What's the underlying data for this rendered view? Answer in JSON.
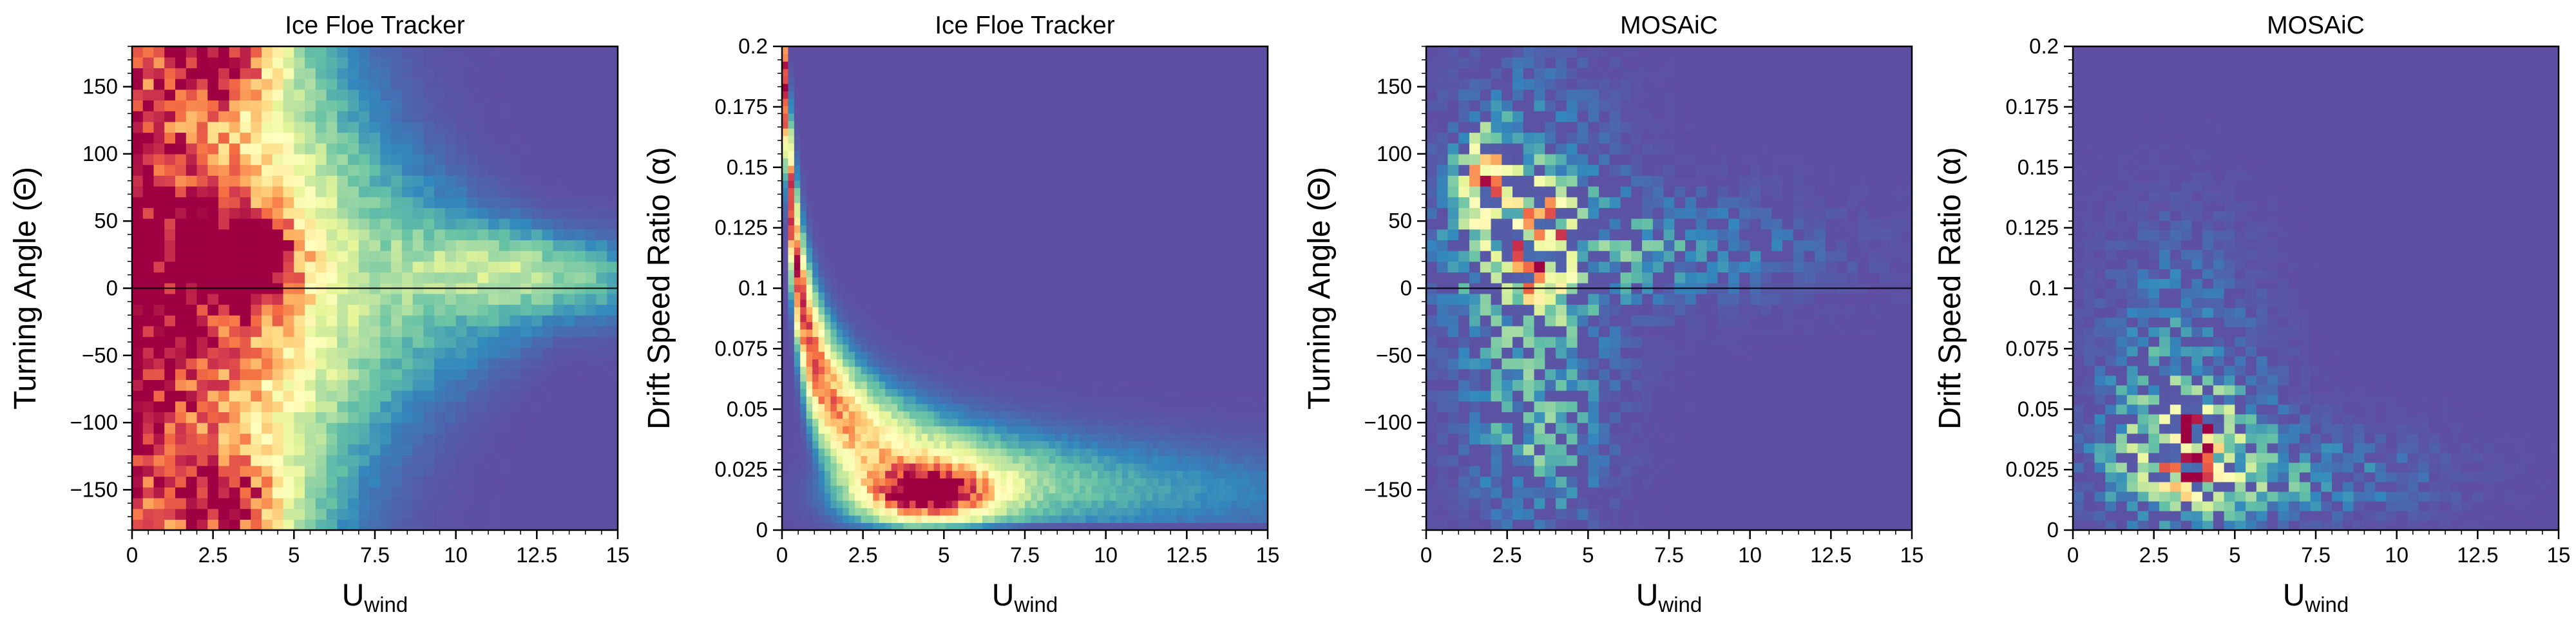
{
  "figure": {
    "colormap": "Spectral_r",
    "colormap_stops": [
      "#5e4fa2",
      "#3288bd",
      "#66c2a5",
      "#abdda4",
      "#e6f598",
      "#ffffbf",
      "#fee08b",
      "#fdae61",
      "#f46d43",
      "#d53e4f",
      "#9e0142"
    ]
  },
  "chart_data": [
    {
      "type": "heatmap",
      "title": "Ice Floe Tracker",
      "xlabel": "U",
      "xlabel_sub": "wind",
      "ylabel": "Turning Angle (Θ)",
      "xlim": [
        0,
        15
      ],
      "ylim": [
        -180,
        180
      ],
      "x_bins": 45,
      "y_bins": 45,
      "xticks": [
        0,
        2.5,
        5,
        7.5,
        10,
        12.5,
        15
      ],
      "xtick_labels": [
        "0",
        "2.5",
        "5",
        "7.5",
        "10",
        "12.5",
        "15"
      ],
      "yticks": [
        -150,
        -100,
        -50,
        0,
        50,
        100,
        150
      ],
      "ytick_labels": [
        "−150",
        "−100",
        "−50",
        "0",
        "50",
        "100",
        "150"
      ],
      "reference_line_y": 0,
      "density_model": "turning",
      "peaks": [
        {
          "x": 3.5,
          "y": 22,
          "intensity": 1.0
        },
        {
          "x": 2.8,
          "y": 170,
          "intensity": 0.9
        },
        {
          "x": 3.0,
          "y": -160,
          "intensity": 0.85
        }
      ]
    },
    {
      "type": "heatmap",
      "title": "Ice Floe Tracker",
      "xlabel": "U",
      "xlabel_sub": "wind",
      "ylabel": "Drift Speed Ratio (α)",
      "xlim": [
        0,
        15
      ],
      "ylim": [
        0,
        0.2
      ],
      "x_bins": 80,
      "y_bins": 65,
      "xticks": [
        0,
        2.5,
        5,
        7.5,
        10,
        12.5,
        15
      ],
      "xtick_labels": [
        "0",
        "2.5",
        "5",
        "7.5",
        "10",
        "12.5",
        "15"
      ],
      "yticks": [
        0,
        0.025,
        0.05,
        0.075,
        0.1,
        0.125,
        0.15,
        0.175,
        0.2
      ],
      "ytick_labels": [
        "0",
        "0.025",
        "0.05",
        "0.075",
        "0.1",
        "0.125",
        "0.15",
        "0.175",
        "0.2"
      ],
      "reference_line_y": null,
      "density_model": "ratio",
      "peaks": [
        {
          "x": 4.5,
          "y": 0.015,
          "intensity": 1.0
        }
      ]
    },
    {
      "type": "heatmap",
      "title": "MOSAiC",
      "xlabel": "U",
      "xlabel_sub": "wind",
      "ylabel": "Turning Angle (Θ)",
      "xlim": [
        0,
        15
      ],
      "ylim": [
        -180,
        180
      ],
      "x_bins": 45,
      "y_bins": 45,
      "xticks": [
        0,
        2.5,
        5,
        7.5,
        10,
        12.5,
        15
      ],
      "xtick_labels": [
        "0",
        "2.5",
        "5",
        "7.5",
        "10",
        "12.5",
        "15"
      ],
      "yticks": [
        -150,
        -100,
        -50,
        0,
        50,
        100,
        150
      ],
      "ytick_labels": [
        "−150",
        "−100",
        "−50",
        "0",
        "50",
        "100",
        "150"
      ],
      "reference_line_y": 0,
      "density_model": "sparse_turning",
      "peaks": [
        {
          "x": 3.5,
          "y": 30,
          "intensity": 1.0
        },
        {
          "x": 1.8,
          "y": 80,
          "intensity": 0.75
        }
      ]
    },
    {
      "type": "heatmap",
      "title": "MOSAiC",
      "xlabel": "U",
      "xlabel_sub": "wind",
      "ylabel": "Drift Speed Ratio (α)",
      "xlim": [
        0,
        15
      ],
      "ylim": [
        0,
        0.2
      ],
      "x_bins": 45,
      "y_bins": 50,
      "xticks": [
        0,
        2.5,
        5,
        7.5,
        10,
        12.5,
        15
      ],
      "xtick_labels": [
        "0",
        "2.5",
        "5",
        "7.5",
        "10",
        "12.5",
        "15"
      ],
      "yticks": [
        0,
        0.025,
        0.05,
        0.075,
        0.1,
        0.125,
        0.15,
        0.175,
        0.2
      ],
      "ytick_labels": [
        "0",
        "0.025",
        "0.05",
        "0.075",
        "0.1",
        "0.125",
        "0.15",
        "0.175",
        "0.2"
      ],
      "reference_line_y": null,
      "density_model": "sparse_ratio",
      "peaks": [
        {
          "x": 3.5,
          "y": 0.025,
          "intensity": 1.0
        },
        {
          "x": 3.8,
          "y": 0.042,
          "intensity": 0.85
        }
      ]
    }
  ]
}
